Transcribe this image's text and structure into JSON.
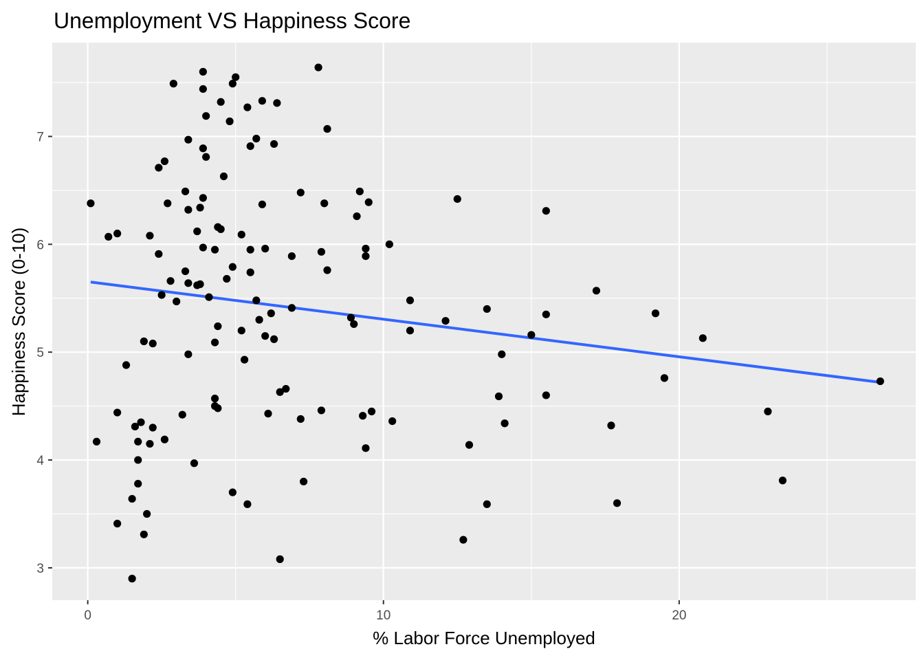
{
  "chart_data": {
    "type": "scatter",
    "title": "Unemployment VS Happiness Score",
    "xlabel": "% Labor Force Unemployed",
    "ylabel": "Happiness Score (0-10)",
    "xlim": [
      -1.2,
      28.0
    ],
    "ylim": [
      2.7,
      7.87
    ],
    "x_ticks": [
      0,
      10,
      20
    ],
    "x_tick_labels": [
      "0",
      "10",
      "20"
    ],
    "x_minor_ticks": [
      5,
      15,
      25
    ],
    "y_ticks": [
      3,
      4,
      5,
      6,
      7
    ],
    "y_tick_labels": [
      "3",
      "4",
      "5",
      "6",
      "7"
    ],
    "y_minor_ticks": [
      3.5,
      4.5,
      5.5,
      6.5,
      7.5
    ],
    "grid": true,
    "legend": "none",
    "colors": {
      "panel": "#ebebeb",
      "grid": "#ffffff",
      "points": "#000000",
      "trend": "#3366ff",
      "tick_label": "#4d4d4d",
      "tick_mark": "#333333"
    },
    "trend_line": {
      "x": [
        0.1,
        26.8
      ],
      "y": [
        5.65,
        4.72
      ]
    },
    "points": [
      [
        0.1,
        6.38
      ],
      [
        0.3,
        4.17
      ],
      [
        0.7,
        6.07
      ],
      [
        1.0,
        6.1
      ],
      [
        1.0,
        4.44
      ],
      [
        1.0,
        3.41
      ],
      [
        1.3,
        4.88
      ],
      [
        1.5,
        3.64
      ],
      [
        1.5,
        2.9
      ],
      [
        1.6,
        4.31
      ],
      [
        1.7,
        4.17
      ],
      [
        1.7,
        4.0
      ],
      [
        1.7,
        3.78
      ],
      [
        1.8,
        4.35
      ],
      [
        1.9,
        5.1
      ],
      [
        1.9,
        3.31
      ],
      [
        2.0,
        3.5
      ],
      [
        2.1,
        6.08
      ],
      [
        2.1,
        4.15
      ],
      [
        2.2,
        5.08
      ],
      [
        2.2,
        4.3
      ],
      [
        2.4,
        6.71
      ],
      [
        2.4,
        5.91
      ],
      [
        2.5,
        5.53
      ],
      [
        2.6,
        6.77
      ],
      [
        2.6,
        4.19
      ],
      [
        2.7,
        6.38
      ],
      [
        2.8,
        5.66
      ],
      [
        2.9,
        7.49
      ],
      [
        3.0,
        5.47
      ],
      [
        3.2,
        4.42
      ],
      [
        3.3,
        6.49
      ],
      [
        3.3,
        5.75
      ],
      [
        3.4,
        6.97
      ],
      [
        3.4,
        6.32
      ],
      [
        3.4,
        5.64
      ],
      [
        3.4,
        4.98
      ],
      [
        3.6,
        3.97
      ],
      [
        3.7,
        6.12
      ],
      [
        3.7,
        5.62
      ],
      [
        3.8,
        6.34
      ],
      [
        3.8,
        5.63
      ],
      [
        3.9,
        7.6
      ],
      [
        3.9,
        7.44
      ],
      [
        3.9,
        6.89
      ],
      [
        3.9,
        6.43
      ],
      [
        3.9,
        5.97
      ],
      [
        4.0,
        7.19
      ],
      [
        4.0,
        6.81
      ],
      [
        4.1,
        5.51
      ],
      [
        4.3,
        5.95
      ],
      [
        4.3,
        5.09
      ],
      [
        4.3,
        4.57
      ],
      [
        4.3,
        4.5
      ],
      [
        4.4,
        6.16
      ],
      [
        4.4,
        5.24
      ],
      [
        4.4,
        4.48
      ],
      [
        4.5,
        7.32
      ],
      [
        4.5,
        6.14
      ],
      [
        4.6,
        6.63
      ],
      [
        4.7,
        5.68
      ],
      [
        4.8,
        7.14
      ],
      [
        4.9,
        7.49
      ],
      [
        4.9,
        5.79
      ],
      [
        4.9,
        3.7
      ],
      [
        5.0,
        7.55
      ],
      [
        5.2,
        6.09
      ],
      [
        5.2,
        5.2
      ],
      [
        5.3,
        4.93
      ],
      [
        5.4,
        7.27
      ],
      [
        5.4,
        3.59
      ],
      [
        5.5,
        6.91
      ],
      [
        5.5,
        5.95
      ],
      [
        5.5,
        5.74
      ],
      [
        5.7,
        6.98
      ],
      [
        5.7,
        5.48
      ],
      [
        5.8,
        5.3
      ],
      [
        5.9,
        7.33
      ],
      [
        5.9,
        6.37
      ],
      [
        6.0,
        5.96
      ],
      [
        6.0,
        5.15
      ],
      [
        6.1,
        4.43
      ],
      [
        6.2,
        5.36
      ],
      [
        6.3,
        6.93
      ],
      [
        6.3,
        5.12
      ],
      [
        6.4,
        7.31
      ],
      [
        6.5,
        4.63
      ],
      [
        6.5,
        3.08
      ],
      [
        6.7,
        4.66
      ],
      [
        6.9,
        5.89
      ],
      [
        6.9,
        5.41
      ],
      [
        7.2,
        6.48
      ],
      [
        7.2,
        4.38
      ],
      [
        7.3,
        3.8
      ],
      [
        7.8,
        7.64
      ],
      [
        7.9,
        5.93
      ],
      [
        7.9,
        4.46
      ],
      [
        8.0,
        6.38
      ],
      [
        8.1,
        7.07
      ],
      [
        8.1,
        5.76
      ],
      [
        8.9,
        5.32
      ],
      [
        9.0,
        5.26
      ],
      [
        9.1,
        6.26
      ],
      [
        9.2,
        6.49
      ],
      [
        9.3,
        4.41
      ],
      [
        9.4,
        5.96
      ],
      [
        9.4,
        5.89
      ],
      [
        9.4,
        4.11
      ],
      [
        9.5,
        6.39
      ],
      [
        9.6,
        4.45
      ],
      [
        10.2,
        6.0
      ],
      [
        10.3,
        4.36
      ],
      [
        10.9,
        5.48
      ],
      [
        10.9,
        5.2
      ],
      [
        12.1,
        5.29
      ],
      [
        12.5,
        6.42
      ],
      [
        12.7,
        3.26
      ],
      [
        12.9,
        4.14
      ],
      [
        13.5,
        5.4
      ],
      [
        13.5,
        3.59
      ],
      [
        13.9,
        4.59
      ],
      [
        14.0,
        4.98
      ],
      [
        14.1,
        4.34
      ],
      [
        15.0,
        5.16
      ],
      [
        15.5,
        6.31
      ],
      [
        15.5,
        5.35
      ],
      [
        15.5,
        4.6
      ],
      [
        17.2,
        5.57
      ],
      [
        17.7,
        4.32
      ],
      [
        17.9,
        3.6
      ],
      [
        19.2,
        5.36
      ],
      [
        19.5,
        4.76
      ],
      [
        20.8,
        5.13
      ],
      [
        23.0,
        4.45
      ],
      [
        23.5,
        3.81
      ],
      [
        26.8,
        4.73
      ]
    ]
  }
}
